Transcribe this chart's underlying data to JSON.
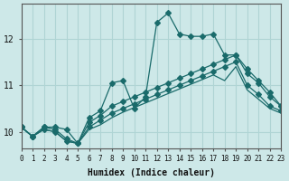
{
  "xlabel": "Humidex (Indice chaleur)",
  "ylabel": "",
  "bg_color": "#cde8e8",
  "line_color": "#1a6b6b",
  "grid_color": "#afd4d4",
  "xlim": [
    0,
    23
  ],
  "ylim": [
    9.65,
    12.75
  ],
  "yticks": [
    10,
    11,
    12
  ],
  "xticks": [
    0,
    1,
    2,
    3,
    4,
    5,
    6,
    7,
    8,
    9,
    10,
    11,
    12,
    13,
    14,
    15,
    16,
    17,
    18,
    19,
    20,
    21,
    22,
    23
  ],
  "series": [
    {
      "x": [
        0,
        1,
        2,
        3,
        4,
        5,
        6,
        7,
        8,
        9,
        10,
        11,
        12,
        13,
        14,
        15,
        16,
        17,
        18,
        19,
        20,
        21,
        22,
        23
      ],
      "y": [
        10.1,
        9.9,
        10.1,
        10.1,
        10.05,
        9.75,
        10.3,
        10.45,
        11.05,
        11.1,
        10.5,
        10.75,
        12.35,
        12.55,
        12.1,
        12.05,
        12.05,
        12.1,
        11.65,
        11.65,
        11.35,
        11.1,
        10.85,
        10.55
      ],
      "marker": "D",
      "markersize": 3,
      "linestyle": "-"
    },
    {
      "x": [
        0,
        1,
        2,
        3,
        4,
        5,
        6,
        7,
        8,
        9,
        10,
        11,
        12,
        13,
        14,
        15,
        16,
        17,
        18,
        19,
        20,
        21,
        22,
        23
      ],
      "y": [
        10.1,
        9.9,
        10.1,
        10.05,
        9.85,
        9.75,
        10.2,
        10.35,
        10.55,
        10.65,
        10.75,
        10.85,
        10.95,
        11.05,
        11.15,
        11.25,
        11.35,
        11.45,
        11.55,
        11.65,
        11.25,
        11.05,
        10.75,
        10.55
      ],
      "marker": "D",
      "markersize": 3,
      "linestyle": "-"
    },
    {
      "x": [
        0,
        1,
        2,
        3,
        4,
        5,
        6,
        7,
        8,
        9,
        10,
        11,
        12,
        13,
        14,
        15,
        16,
        17,
        18,
        19,
        20,
        21,
        22,
        23
      ],
      "y": [
        10.1,
        9.9,
        10.05,
        10.0,
        9.8,
        9.75,
        10.1,
        10.25,
        10.4,
        10.5,
        10.6,
        10.7,
        10.8,
        10.9,
        11.0,
        11.1,
        11.2,
        11.3,
        11.4,
        11.5,
        11.0,
        10.8,
        10.55,
        10.45
      ],
      "marker": "D",
      "markersize": 3,
      "linestyle": "-"
    },
    {
      "x": [
        0,
        1,
        2,
        3,
        4,
        5,
        6,
        7,
        8,
        9,
        10,
        11,
        12,
        13,
        14,
        15,
        16,
        17,
        18,
        19,
        20,
        21,
        22,
        23
      ],
      "y": [
        10.1,
        9.9,
        10.05,
        10.0,
        9.8,
        9.75,
        10.05,
        10.15,
        10.3,
        10.42,
        10.52,
        10.62,
        10.72,
        10.82,
        10.92,
        11.02,
        11.12,
        11.22,
        11.1,
        11.4,
        10.9,
        10.7,
        10.5,
        10.4
      ],
      "marker": null,
      "markersize": 0,
      "linestyle": "-"
    }
  ]
}
